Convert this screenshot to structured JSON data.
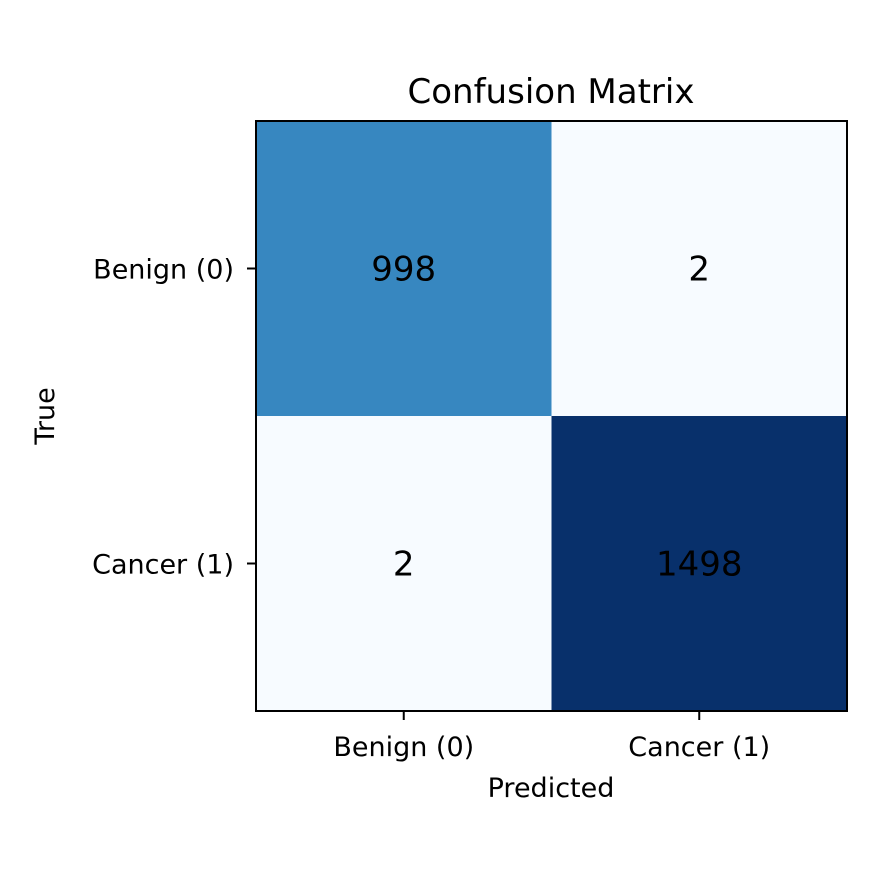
{
  "chart_data": {
    "type": "heatmap",
    "title": "Confusion Matrix",
    "xlabel": "Predicted",
    "ylabel": "True",
    "x_categories": [
      "Benign (0)",
      "Cancer (1)"
    ],
    "y_categories": [
      "Benign (0)",
      "Cancer (1)"
    ],
    "values": [
      [
        998,
        2
      ],
      [
        2,
        1498
      ]
    ],
    "colormap": "Blues",
    "vmin": 2,
    "vmax": 1498,
    "colors": {
      "low": "#f7fbff",
      "mid": "#3787c0",
      "high": "#08306b",
      "axes": "#000000"
    }
  }
}
